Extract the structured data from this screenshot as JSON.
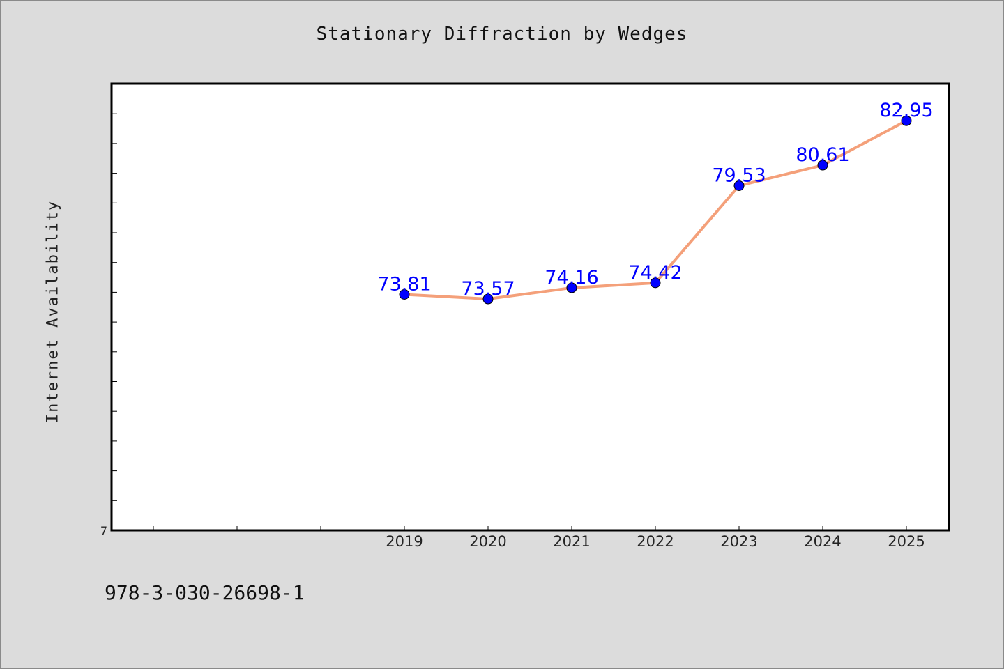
{
  "chart_data": {
    "type": "line",
    "title": "Stationary Diffraction by Wedges",
    "xlabel": "",
    "ylabel": "Internet Availability",
    "categories": [
      "2019",
      "2020",
      "2021",
      "2022",
      "2023",
      "2024",
      "2025"
    ],
    "series": [
      {
        "values": [
          73.81,
          73.57,
          74.16,
          74.42,
          79.53,
          80.61,
          82.95
        ],
        "line_color": "#f4a07a",
        "marker_color": "#0000ff"
      }
    ],
    "data_labels": [
      "73.81",
      "73.57",
      "74.16",
      "74.42",
      "79.53",
      "80.61",
      "82.95"
    ],
    "y_tick_label_shown": "7",
    "ylim": [
      61.4,
      84.9
    ],
    "x_slots_before_data": 3,
    "grid": false,
    "legend": "none"
  },
  "footer": {
    "identifier": "978-3-030-26698-1"
  },
  "colors": {
    "background": "#dcdcdc",
    "plot_background": "#ffffff",
    "line": "#f4a07a",
    "marker": "#0000ff",
    "data_label": "#0000ff"
  }
}
